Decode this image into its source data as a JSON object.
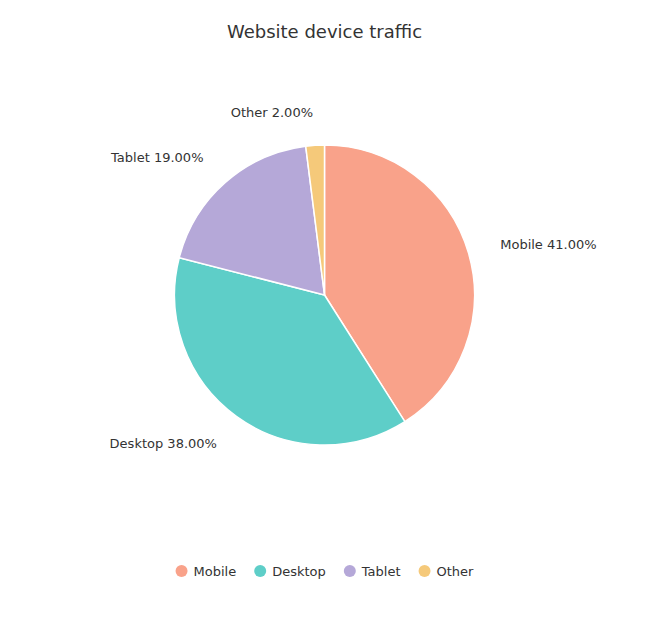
{
  "chart_data": {
    "type": "pie",
    "title": "Website device traffic",
    "categories": [
      "Mobile",
      "Desktop",
      "Tablet",
      "Other"
    ],
    "values": [
      41,
      38,
      19,
      2
    ],
    "value_labels": [
      "Mobile 41.00%",
      "Desktop 38.00%",
      "Tablet 19.00%",
      "Other 2.00%"
    ],
    "data_labels": true,
    "colors": [
      "#f9a28a",
      "#5ecec8",
      "#b5a8d8",
      "#f5c97a"
    ],
    "legend": "bottom"
  }
}
